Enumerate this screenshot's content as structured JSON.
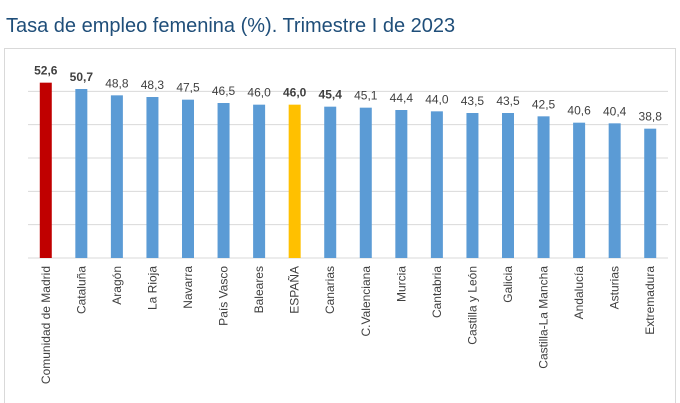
{
  "chart_data": {
    "type": "bar",
    "title": "Tasa de empleo femenina (%). Trimestre I de 2023",
    "categories": [
      "Comunidad de Madrid",
      "Cataluña",
      "Aragón",
      "La Rioja",
      "Navarra",
      "País Vasco",
      "Baleares",
      "ESPAÑA",
      "Canarias",
      "C.Valenciana",
      "Murcia",
      "Cantabria",
      "Castilla y León",
      "Galicia",
      "Castilla-La Mancha",
      "Andalucía",
      "Asturias",
      "Extremadura"
    ],
    "values": [
      52.6,
      50.7,
      48.8,
      48.3,
      47.5,
      46.5,
      46.0,
      46.0,
      45.4,
      45.1,
      44.4,
      44.0,
      43.5,
      43.5,
      42.5,
      40.6,
      40.4,
      38.8
    ],
    "value_labels": [
      "52,6",
      "50,7",
      "48,8",
      "48,3",
      "47,5",
      "46,5",
      "46,0",
      "46,0",
      "45,4",
      "45,1",
      "44,4",
      "44,0",
      "43,5",
      "43,5",
      "42,5",
      "40,6",
      "40,4",
      "38,8"
    ],
    "value_label_bold": [
      true,
      true,
      false,
      false,
      false,
      false,
      false,
      true,
      true,
      false,
      false,
      false,
      false,
      false,
      false,
      false,
      false,
      false
    ],
    "colors": [
      "#c00000",
      "#5b9bd5",
      "#5b9bd5",
      "#5b9bd5",
      "#5b9bd5",
      "#5b9bd5",
      "#5b9bd5",
      "#ffc000",
      "#5b9bd5",
      "#5b9bd5",
      "#5b9bd5",
      "#5b9bd5",
      "#5b9bd5",
      "#5b9bd5",
      "#5b9bd5",
      "#5b9bd5",
      "#5b9bd5",
      "#5b9bd5"
    ],
    "ylim": [
      0,
      60
    ],
    "yticks": [
      0,
      10,
      20,
      30,
      40,
      50
    ],
    "grid": true
  }
}
